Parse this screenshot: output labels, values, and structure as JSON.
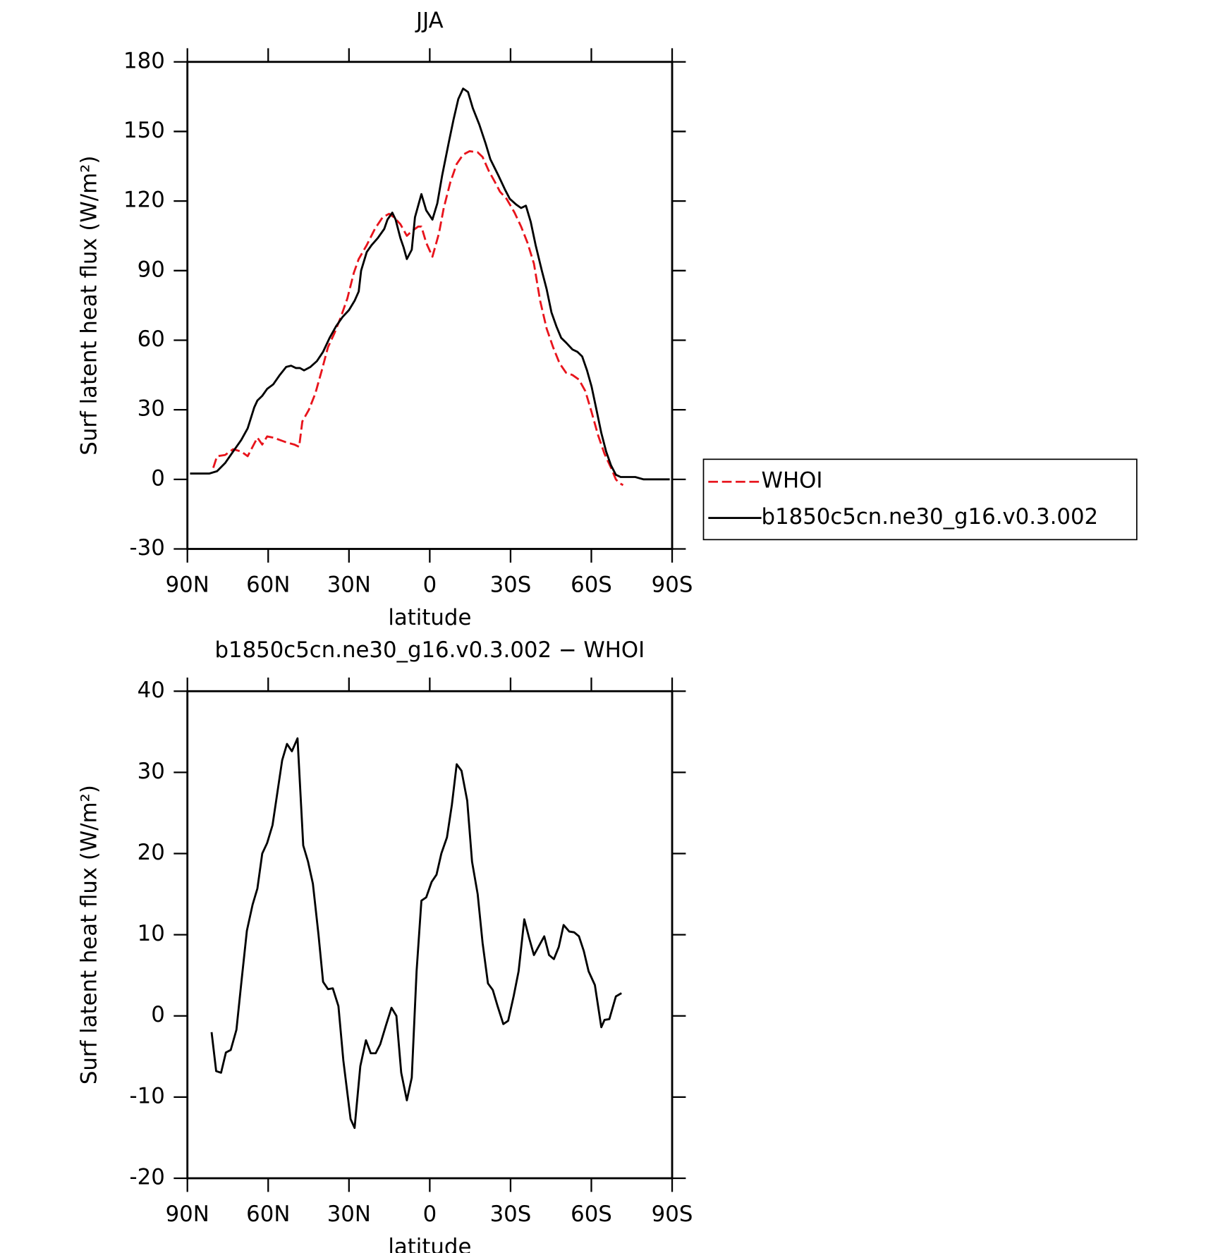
{
  "chart_data": [
    {
      "type": "line",
      "title": "JJA",
      "xlabel": "latitude",
      "ylabel": "Surf latent heat flux (W/m²)",
      "xlim": [
        90,
        -90
      ],
      "ylim": [
        -30,
        180
      ],
      "xticks": [
        {
          "value": 90,
          "label": "90N"
        },
        {
          "value": 60,
          "label": "60N"
        },
        {
          "value": 30,
          "label": "30N"
        },
        0,
        {
          "value": -30,
          "label": "30S"
        },
        {
          "value": -60,
          "label": "60S"
        },
        {
          "value": -90,
          "label": "90S"
        }
      ],
      "yticks": [
        -30,
        0,
        30,
        60,
        90,
        120,
        150,
        180
      ],
      "legend": "right",
      "series": [
        {
          "name": "WHOI",
          "color": "#e8141c",
          "dash": "dashed",
          "x": [
            80.4,
            79.0,
            76.0,
            73.0,
            70.0,
            67.6,
            64.0,
            62.2,
            60.4,
            58.1,
            55.7,
            53.3,
            50.3,
            48.5,
            47.3,
            44.9,
            42.5,
            40.1,
            37.8,
            35.4,
            33.0,
            30.6,
            28.2,
            26.4,
            23.4,
            20.4,
            17.5,
            15.1,
            13.3,
            10.9,
            8.5,
            6.7,
            4.3,
            3.1,
            1.3,
            -1.0,
            -3.4,
            -5.2,
            -7.6,
            -10.0,
            -12.4,
            -14.8,
            -17.8,
            -19.6,
            -21.9,
            -24.3,
            -26.1,
            -28.5,
            -31.5,
            -33.9,
            -36.3,
            -38.7,
            -41.0,
            -43.4,
            -45.8,
            -48.2,
            -50.6,
            -53.0,
            -55.4,
            -57.8,
            -60.1,
            -62.5,
            -64.9,
            -67.3,
            -69.1,
            -70.3,
            -71.8
          ],
          "values": [
            5,
            10,
            10.5,
            13,
            12,
            10,
            18,
            15,
            18.5,
            18,
            17,
            16,
            15,
            14,
            25,
            30,
            37,
            47,
            57,
            63,
            70,
            78,
            89,
            95,
            101,
            108,
            113,
            114.5,
            113,
            110,
            105,
            107,
            109,
            109,
            102,
            96,
            106,
            117,
            128,
            136,
            140,
            141.5,
            141,
            139,
            133,
            128,
            124,
            121,
            115,
            109,
            102,
            93,
            77,
            65,
            57,
            50,
            46,
            45,
            43,
            38,
            29,
            19,
            11,
            5,
            0,
            -1.5,
            -2.5
          ]
        },
        {
          "name": "b1850c5cn.ne30_g16.v0.3.002",
          "color": "#000000",
          "dash": "solid",
          "x": [
            89,
            81.9,
            79.0,
            76.0,
            73.0,
            70.0,
            67.6,
            65.2,
            64.0,
            62.2,
            60.4,
            58.1,
            55.7,
            53.3,
            51.5,
            49.7,
            48.2,
            46.7,
            44.3,
            41.9,
            39.6,
            37.2,
            34.8,
            32.4,
            30.0,
            27.9,
            26.4,
            25.5,
            23.4,
            21.6,
            19.3,
            16.9,
            15.7,
            13.9,
            12.7,
            10.9,
            9.7,
            8.5,
            6.7,
            5.5,
            3.1,
            1.3,
            -1.0,
            -2.8,
            -4.6,
            -7.0,
            -8.8,
            -10.6,
            -12.4,
            -14.2,
            -16.0,
            -18.4,
            -20.7,
            -22.5,
            -25.5,
            -27.9,
            -29.7,
            -32.1,
            -33.9,
            -35.7,
            -37.5,
            -39.3,
            -41.6,
            -43.4,
            -45.2,
            -47.0,
            -48.8,
            -50.6,
            -53.0,
            -54.8,
            -56.6,
            -58.4,
            -60.1,
            -61.9,
            -63.7,
            -65.5,
            -67.3,
            -69.1,
            -70.9,
            -76.3,
            -79.3,
            -89.1
          ],
          "values": [
            2.5,
            2.5,
            3.5,
            7,
            12,
            17,
            22,
            31,
            34,
            36,
            39,
            41,
            45,
            48.5,
            49,
            48,
            48,
            47,
            48.5,
            51,
            55,
            61,
            66,
            70,
            73,
            77,
            81,
            90,
            98,
            101,
            104,
            108,
            112,
            115,
            112,
            104,
            100,
            95,
            99,
            113,
            123,
            116,
            112,
            119,
            131,
            145,
            155,
            164,
            168.5,
            167,
            160,
            153,
            145,
            138,
            131,
            125,
            121,
            118.5,
            117,
            118,
            111,
            101,
            90,
            82,
            72,
            66,
            61,
            59,
            56,
            55,
            53,
            47,
            40,
            30,
            20,
            12,
            6,
            2,
            1,
            1,
            0,
            0
          ]
        }
      ]
    },
    {
      "type": "line",
      "title": "b1850c5cn.ne30_g16.v0.3.002 − WHOI",
      "xlabel": "latitude",
      "ylabel": "Surf latent heat flux (W/m²)",
      "xlim": [
        90,
        -90
      ],
      "ylim": [
        -20,
        40
      ],
      "xticks": [
        {
          "value": 90,
          "label": "90N"
        },
        {
          "value": 60,
          "label": "60N"
        },
        {
          "value": 30,
          "label": "30N"
        },
        0,
        {
          "value": -30,
          "label": "30S"
        },
        {
          "value": -60,
          "label": "60S"
        },
        {
          "value": -90,
          "label": "90S"
        }
      ],
      "yticks": [
        -20,
        -10,
        0,
        10,
        20,
        30,
        40
      ],
      "series": [
        {
          "color": "#000000",
          "dash": "solid",
          "x": [
            81.0,
            79.3,
            77.5,
            75.7,
            73.9,
            71.8,
            70.0,
            67.9,
            65.8,
            64.0,
            62.2,
            60.4,
            58.4,
            56.6,
            54.8,
            53.0,
            51.2,
            49.1,
            47.0,
            45.2,
            43.4,
            41.3,
            39.6,
            37.8,
            36.0,
            33.9,
            32.1,
            29.4,
            27.9,
            25.8,
            23.7,
            21.9,
            20.1,
            18.4,
            16.3,
            14.2,
            12.4,
            10.6,
            8.5,
            6.7,
            4.9,
            3.1,
            1.3,
            -0.7,
            -2.5,
            -4.3,
            -6.4,
            -8.2,
            -10.0,
            -11.8,
            -13.9,
            -15.7,
            -17.8,
            -19.6,
            -21.6,
            -23.4,
            -25.2,
            -27.3,
            -29.1,
            -31.2,
            -33.0,
            -35.1,
            -36.9,
            -38.7,
            -40.7,
            -42.5,
            -44.3,
            -46.1,
            -47.9,
            -49.7,
            -51.8,
            -53.6,
            -55.4,
            -57.2,
            -59.0,
            -61.3,
            -63.7,
            -64.9,
            -66.7,
            -69.1,
            -71.2
          ],
          "values": [
            -2,
            -6.8,
            -7,
            -4.5,
            -4.2,
            -1.7,
            4,
            10.5,
            13.7,
            15.7,
            20,
            21.3,
            23.5,
            27.5,
            31.5,
            33.5,
            32.6,
            34.2,
            21,
            19,
            16.3,
            10,
            4.2,
            3.3,
            3.4,
            1.2,
            -5.5,
            -12.7,
            -13.8,
            -6.2,
            -3,
            -4.6,
            -4.6,
            -3.5,
            -1.2,
            1,
            0,
            -7,
            -10.4,
            -7.6,
            5.5,
            14.2,
            14.6,
            16.5,
            17.4,
            20,
            22,
            26,
            31,
            30.2,
            26.5,
            19,
            15,
            9,
            4,
            3.2,
            1.2,
            -1,
            -0.6,
            2.5,
            5.5,
            11.9,
            9.6,
            7.5,
            8.7,
            9.8,
            7.5,
            7,
            8.5,
            11.2,
            10.4,
            10.3,
            9.8,
            8,
            5.5,
            3.8,
            -1.4,
            -0.5,
            -0.4,
            2.4,
            2.8
          ]
        }
      ]
    }
  ]
}
